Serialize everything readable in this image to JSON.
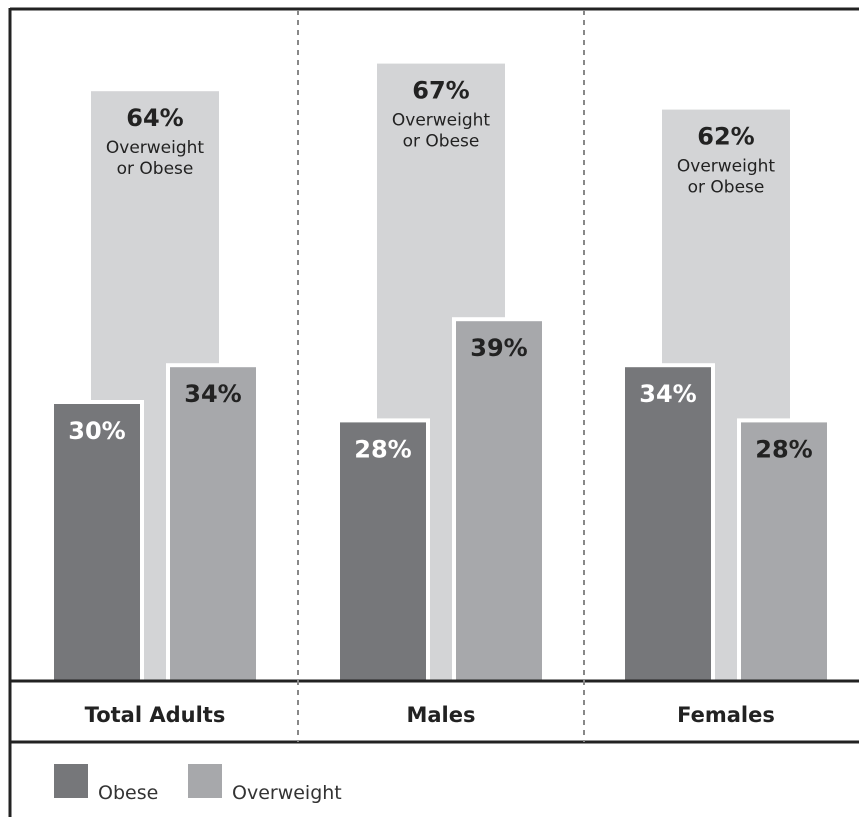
{
  "chart_data": {
    "type": "bar",
    "categories": [
      "Total Adults",
      "Males",
      "Females"
    ],
    "series": [
      {
        "name": "Obese",
        "values": [
          30,
          28,
          34
        ],
        "labels": [
          "30%",
          "28%",
          "34%"
        ],
        "color": "#76777a"
      },
      {
        "name": "Overweight",
        "values": [
          34,
          39,
          28
        ],
        "labels": [
          "34%",
          "39%",
          "28%"
        ],
        "color": "#a7a8ab"
      }
    ],
    "totals": {
      "name": "Overweight or Obese",
      "values": [
        64,
        67,
        62
      ],
      "labels": [
        "64%",
        "67%",
        "62%"
      ],
      "text_lines": [
        "Overweight",
        "or Obese"
      ],
      "color": "#d3d4d6"
    },
    "ylim": [
      0,
      70
    ],
    "grid": false,
    "legend_position": "bottom-left",
    "colors": {
      "axis": "#222222",
      "divider": "#888888",
      "label_dark": "#222222",
      "label_light": "#ffffff"
    }
  }
}
